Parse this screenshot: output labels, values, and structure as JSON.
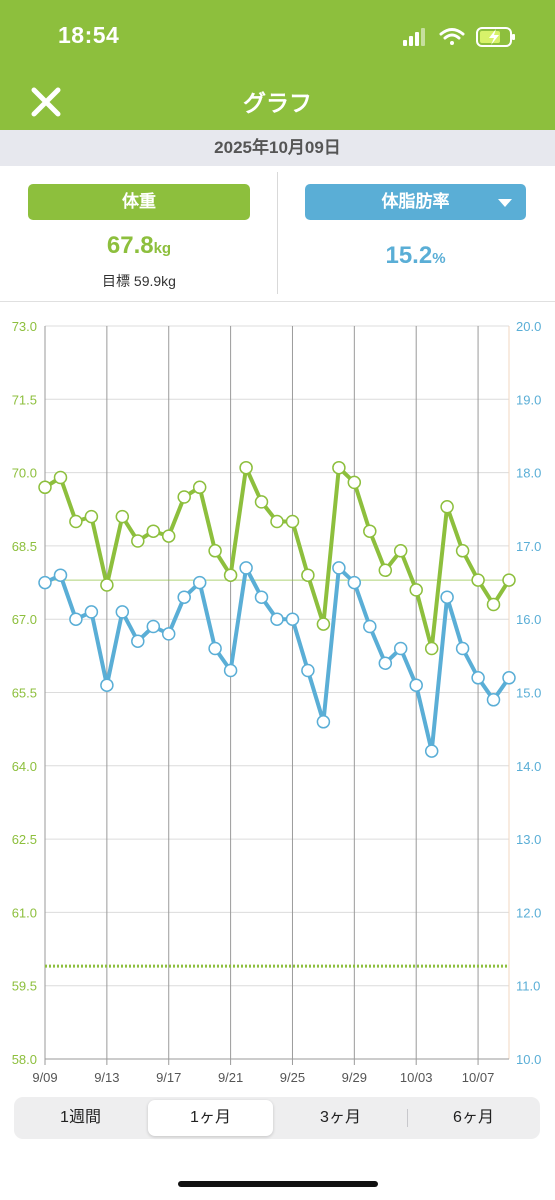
{
  "status_bar": {
    "time": "18:54"
  },
  "nav": {
    "title": "グラフ",
    "close_icon": "close-icon"
  },
  "date_bar": {
    "date": "2025年10月09日"
  },
  "summary": {
    "weight_label": "体重",
    "weight_value": "67.8",
    "weight_unit": "kg",
    "goal_label": "目標 59.9kg",
    "fat_label": "体脂肪率",
    "fat_value": "15.2",
    "fat_unit": "%"
  },
  "colors": {
    "green": "#8dbf3d",
    "blue": "#5aaed6"
  },
  "chart_data": {
    "type": "line",
    "x": [
      "9/09",
      "9/10",
      "9/11",
      "9/12",
      "9/13",
      "9/14",
      "9/15",
      "9/16",
      "9/17",
      "9/18",
      "9/19",
      "9/20",
      "9/21",
      "9/22",
      "9/23",
      "9/24",
      "9/25",
      "9/26",
      "9/27",
      "9/28",
      "9/29",
      "9/30",
      "10/01",
      "10/02",
      "10/03",
      "10/04",
      "10/05",
      "10/06",
      "10/07",
      "10/08",
      "10/09"
    ],
    "x_tick_labels": [
      "9/09",
      "9/13",
      "9/17",
      "9/21",
      "9/25",
      "9/29",
      "10/03",
      "10/07"
    ],
    "series": [
      {
        "name": "体重",
        "axis": "left",
        "color": "#8dbf3d",
        "values": [
          69.7,
          69.9,
          69.0,
          69.1,
          67.7,
          69.1,
          68.6,
          68.8,
          68.7,
          69.5,
          69.7,
          68.4,
          67.9,
          70.1,
          69.4,
          69.0,
          69.0,
          67.9,
          66.9,
          70.1,
          69.8,
          68.8,
          68.0,
          68.4,
          67.6,
          66.4,
          69.3,
          68.4,
          67.8,
          67.3,
          67.8
        ]
      },
      {
        "name": "体脂肪率",
        "axis": "right",
        "color": "#5aaed6",
        "values": [
          16.5,
          16.6,
          16.0,
          16.1,
          15.1,
          16.1,
          15.7,
          15.9,
          15.8,
          16.3,
          16.5,
          15.6,
          15.3,
          16.7,
          16.3,
          16.0,
          16.0,
          15.3,
          14.6,
          16.7,
          16.5,
          15.9,
          15.4,
          15.6,
          15.1,
          14.2,
          16.3,
          15.6,
          15.2,
          14.9,
          15.2
        ]
      }
    ],
    "y_left": {
      "ylim": [
        58.0,
        73.0
      ],
      "ticks": [
        "73.0",
        "71.5",
        "70.0",
        "68.5",
        "67.0",
        "65.5",
        "64.0",
        "62.5",
        "61.0",
        "59.5",
        "58.0"
      ]
    },
    "y_right": {
      "ylim": [
        10.0,
        20.0
      ],
      "ticks": [
        "20.0",
        "19.0",
        "18.0",
        "17.0",
        "16.0",
        "15.0",
        "14.0",
        "13.0",
        "12.0",
        "11.0",
        "10.0"
      ]
    },
    "reference_lines": [
      {
        "axis": "left",
        "value": 67.8,
        "style": "solid"
      },
      {
        "axis": "left",
        "value": 59.9,
        "style": "dotted"
      }
    ],
    "grid": true
  },
  "range_tabs": [
    {
      "label": "1週間",
      "active": false
    },
    {
      "label": "1ヶ月",
      "active": true
    },
    {
      "label": "3ヶ月",
      "active": false
    },
    {
      "label": "6ヶ月",
      "active": false
    }
  ]
}
